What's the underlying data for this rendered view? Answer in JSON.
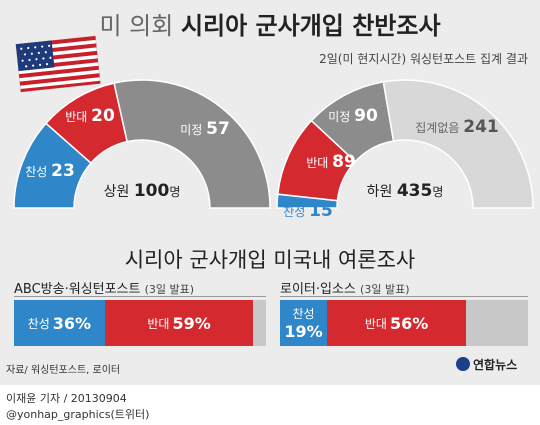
{
  "header": {
    "title_light": "미 의회",
    "title_bold": "시리아 군사개입 찬반조사",
    "note": "2일(미 현지시간) 워싱턴포스트 집계 결과"
  },
  "section2_title": "시리아 군사개입 미국내 여론조사",
  "colors": {
    "support": "#2f86c9",
    "oppose": "#d42a2f",
    "undecided": "#8c8c8c",
    "no_count": "#d8d8d8",
    "rest": "#c8c8c8"
  },
  "chart_data": [
    {
      "type": "pie",
      "title": "상원",
      "total": 100,
      "unit": "명",
      "shape": "half-donut",
      "slices": [
        {
          "label": "찬성",
          "value": 23,
          "color_key": "support"
        },
        {
          "label": "반대",
          "value": 20,
          "color_key": "oppose"
        },
        {
          "label": "미정",
          "value": 57,
          "color_key": "undecided"
        }
      ]
    },
    {
      "type": "pie",
      "title": "하원",
      "total": 435,
      "unit": "명",
      "shape": "half-donut",
      "slices": [
        {
          "label": "찬성",
          "value": 15,
          "color_key": "support"
        },
        {
          "label": "반대",
          "value": 89,
          "color_key": "oppose"
        },
        {
          "label": "미정",
          "value": 90,
          "color_key": "undecided"
        },
        {
          "label": "집계없음",
          "value": 241,
          "color_key": "no_count"
        }
      ]
    },
    {
      "type": "bar",
      "orientation": "horizontal-stacked",
      "title": "ABC방송·워싱턴포스트",
      "date": "(3일 발표)",
      "segments": [
        {
          "label": "찬성",
          "value": 36,
          "display": "36%",
          "color_key": "support"
        },
        {
          "label": "반대",
          "value": 59,
          "display": "59%",
          "color_key": "oppose"
        },
        {
          "label": "",
          "value": 5,
          "display": "",
          "color_key": "rest"
        }
      ]
    },
    {
      "type": "bar",
      "orientation": "horizontal-stacked",
      "title": "로이터·입소스",
      "date": "(3일 발표)",
      "segments": [
        {
          "label": "찬성",
          "value": 19,
          "display": "19%",
          "color_key": "support"
        },
        {
          "label": "반대",
          "value": 56,
          "display": "56%",
          "color_key": "oppose"
        },
        {
          "label": "",
          "value": 25,
          "display": "",
          "color_key": "rest"
        }
      ]
    }
  ],
  "footer": {
    "source": "자료/ 워싱턴포스트, 로이터",
    "credit_line1": "이재윤 기자 / 20130904",
    "credit_line2": "@yonhap_graphics(트위터)",
    "logo_text": "연합뉴스"
  }
}
